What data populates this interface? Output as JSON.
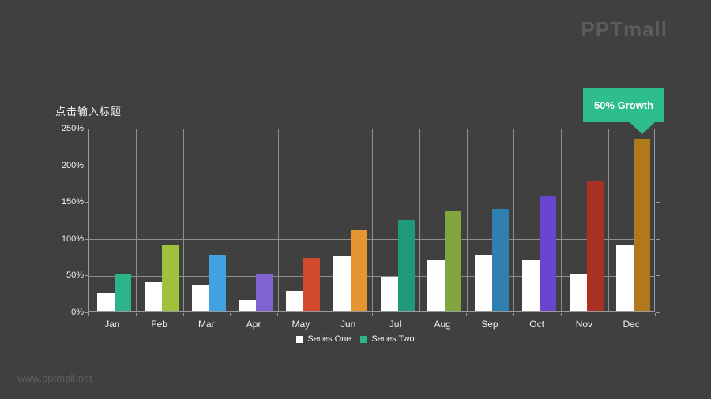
{
  "page": {
    "background": "#404040",
    "logo": "PPTmall",
    "watermark": "www.pptmall.net"
  },
  "callout": {
    "text": "50% Growth",
    "color": "#2EBD8D",
    "text_color": "#FFFFFF"
  },
  "axis": {
    "label_color": "#F2F2F2",
    "grid_color": "#8F8F8F"
  },
  "chart_data": {
    "type": "bar",
    "title": "点击输入标题",
    "categories": [
      "Jan",
      "Feb",
      "Mar",
      "Apr",
      "May",
      "Jun",
      "Jul",
      "Aug",
      "Sep",
      "Oct",
      "Nov",
      "Dec"
    ],
    "series": [
      {
        "name": "Series One",
        "color": "#FFFFFF",
        "values": [
          25,
          40,
          35,
          15,
          28,
          75,
          47,
          70,
          77,
          70,
          50,
          90
        ]
      },
      {
        "name": "Series Two",
        "legend_color": "#2BB389",
        "colors": [
          "#2BB389",
          "#9FC23D",
          "#41A3E3",
          "#7F63D1",
          "#D14A2C",
          "#E59631",
          "#1F9A7C",
          "#81A43D",
          "#2F7FB0",
          "#6746CD",
          "#A93122",
          "#B0791C"
        ],
        "values": [
          50,
          90,
          77,
          50,
          73,
          110,
          124,
          136,
          140,
          157,
          177,
          235
        ]
      }
    ],
    "ylim": [
      0,
      250
    ],
    "ytick_step": 50,
    "ytick_suffix": "%",
    "grid": true,
    "legend_position": "bottom",
    "annotation": {
      "text": "50% Growth",
      "target_category": "Dec",
      "target_series": "Series Two"
    }
  }
}
